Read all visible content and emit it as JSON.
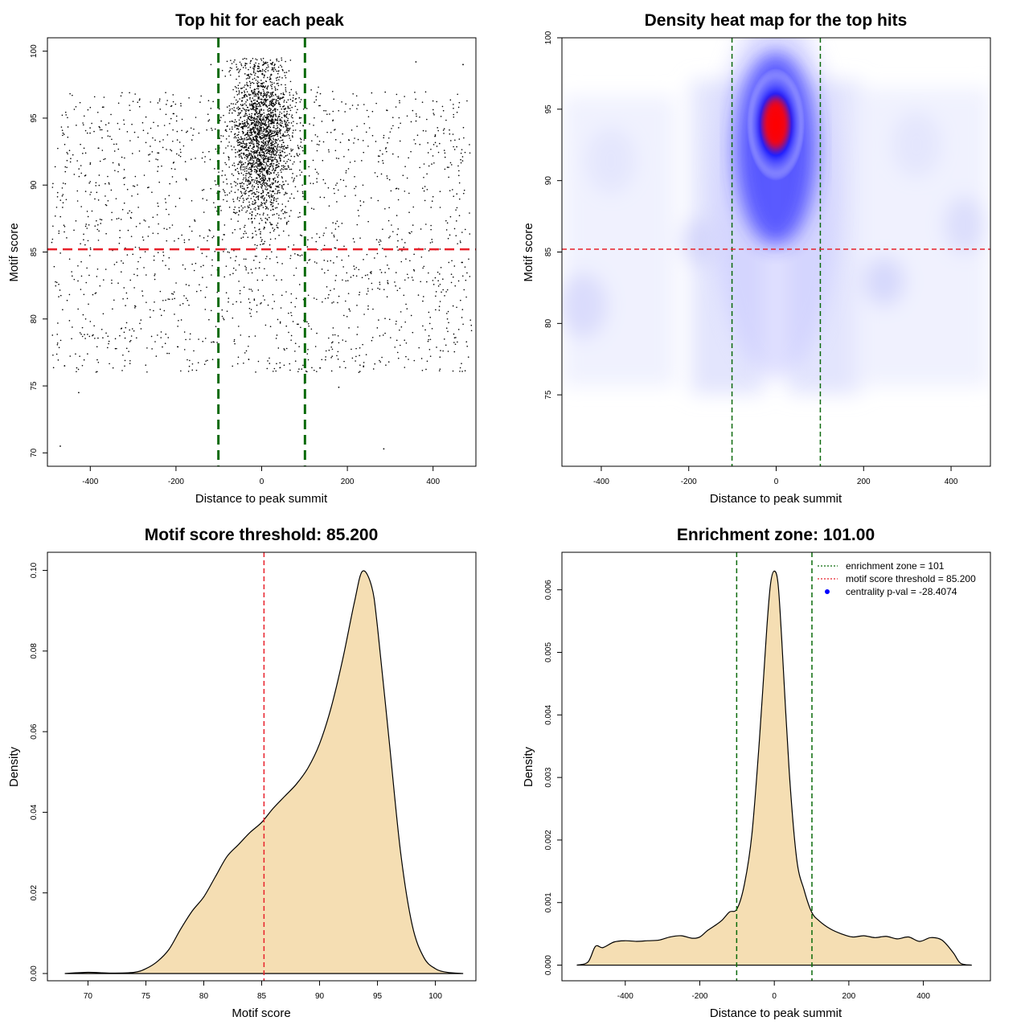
{
  "colors": {
    "threshold": "#e8202a",
    "zone": "#0a6a0a",
    "points": "#000000",
    "fill": "#f5deb3",
    "heat_low": "#ffffff",
    "heat_mid": "#0000ff",
    "heat_high": "#ff0000"
  },
  "chart_data": [
    {
      "id": "scatter",
      "type": "scatter",
      "title": "Top hit for each peak",
      "xlabel": "Distance to peak summit",
      "ylabel": "Motif score",
      "xlim": [
        -500,
        500
      ],
      "ylim": [
        69,
        101
      ],
      "xticks": [
        -400,
        -200,
        0,
        200,
        400
      ],
      "xtick_labels": [
        "-400",
        "-200",
        "0",
        "200",
        "400"
      ],
      "yticks": [
        70,
        75,
        80,
        85,
        90,
        95,
        100
      ],
      "ytick_labels": [
        "70",
        "75",
        "80",
        "85",
        "90",
        "95",
        "100"
      ],
      "hline": 85.2,
      "vlines": [
        -101,
        101
      ],
      "point_groups": [
        {
          "name": "background",
          "count": 1700,
          "x_range": [
            -490,
            490
          ],
          "y_range": [
            76,
            97
          ]
        },
        {
          "name": "central",
          "count": 2200,
          "x_center": 0,
          "x_sd": 35,
          "y_center": 93.5,
          "y_sd": 3
        },
        {
          "name": "outliers",
          "points": [
            [
              -470,
              70.5
            ],
            [
              285,
              70.3
            ],
            [
              -427,
              74.5
            ],
            [
              -460,
              76.5
            ],
            [
              100,
              75.2
            ],
            [
              180,
              74.9
            ],
            [
              360,
              99.2
            ],
            [
              470,
              99.0
            ]
          ]
        }
      ]
    },
    {
      "id": "heatmap",
      "type": "heatmap",
      "title": "Density heat map for the top hits",
      "xlabel": "Distance to peak summit",
      "ylabel": "Motif score",
      "xlim": [
        -490,
        490
      ],
      "ylim": [
        70,
        100
      ],
      "xticks": [
        -400,
        -200,
        0,
        200,
        400
      ],
      "xtick_labels": [
        "-400",
        "-200",
        "0",
        "200",
        "400"
      ],
      "yticks": [
        75,
        80,
        85,
        90,
        95,
        100
      ],
      "ytick_labels": [
        "75",
        "80",
        "85",
        "90",
        "95",
        "100"
      ],
      "hline": 85.2,
      "vlines": [
        -101,
        101
      ],
      "hotspot": {
        "x": 0,
        "y": 94
      },
      "color_scale": [
        "white",
        "blue",
        "red"
      ]
    },
    {
      "id": "score-density",
      "type": "area",
      "title": "Motif score threshold: 85.200",
      "xlabel": "Motif score",
      "ylabel": "Density",
      "xlim": [
        66.5,
        103.5
      ],
      "ylim": [
        -0.0018,
        0.1045
      ],
      "xticks": [
        70,
        75,
        80,
        85,
        90,
        95,
        100
      ],
      "xtick_labels": [
        "70",
        "75",
        "80",
        "85",
        "90",
        "95",
        "100"
      ],
      "yticks": [
        0.0,
        0.02,
        0.04,
        0.06,
        0.08,
        0.1
      ],
      "ytick_labels": [
        "0.00",
        "0.02",
        "0.04",
        "0.06",
        "0.08",
        "0.10"
      ],
      "vline": 85.2,
      "x": [
        68,
        70,
        72,
        74,
        75,
        76,
        77,
        78,
        79,
        80,
        81,
        82,
        83,
        84,
        85,
        86,
        87,
        88,
        89,
        90,
        91,
        92,
        93,
        93.7,
        94.5,
        95,
        96,
        97,
        98,
        99,
        100,
        101,
        102.4
      ],
      "y": [
        0.0,
        0.0003,
        0.0001,
        0.0003,
        0.0012,
        0.003,
        0.006,
        0.011,
        0.0155,
        0.019,
        0.024,
        0.029,
        0.032,
        0.035,
        0.0375,
        0.041,
        0.044,
        0.047,
        0.051,
        0.057,
        0.066,
        0.078,
        0.092,
        0.0998,
        0.096,
        0.086,
        0.058,
        0.03,
        0.012,
        0.004,
        0.0012,
        0.0003,
        0.0
      ]
    },
    {
      "id": "distance-density",
      "type": "area",
      "title": "Enrichment zone: 101.00",
      "xlabel": "Distance to peak summit",
      "ylabel": "Density",
      "xlim": [
        -570,
        580
      ],
      "ylim": [
        -0.00025,
        0.0066
      ],
      "xticks": [
        -400,
        -200,
        0,
        200,
        400
      ],
      "xtick_labels": [
        "-400",
        "-200",
        "0",
        "200",
        "400"
      ],
      "yticks": [
        0.0,
        0.001,
        0.002,
        0.003,
        0.004,
        0.005,
        0.006
      ],
      "ytick_labels": [
        "0.000",
        "0.001",
        "0.002",
        "0.003",
        "0.004",
        "0.005",
        "0.006"
      ],
      "vlines": [
        -101,
        101
      ],
      "x": [
        -530,
        -500,
        -480,
        -460,
        -430,
        -400,
        -370,
        -340,
        -310,
        -280,
        -250,
        -220,
        -200,
        -180,
        -160,
        -140,
        -120,
        -100,
        -80,
        -60,
        -40,
        -20,
        -10,
        0,
        10,
        20,
        40,
        60,
        80,
        100,
        120,
        150,
        180,
        210,
        240,
        270,
        300,
        330,
        360,
        390,
        420,
        450,
        480,
        500,
        530
      ],
      "y": [
        0.0,
        5e-05,
        0.0003,
        0.00028,
        0.00037,
        0.00039,
        0.00038,
        0.00039,
        0.0004,
        0.00045,
        0.00047,
        0.00043,
        0.00045,
        0.00055,
        0.00063,
        0.00072,
        0.00085,
        0.0009,
        0.0013,
        0.0021,
        0.0036,
        0.0054,
        0.0061,
        0.0063,
        0.0061,
        0.0052,
        0.0031,
        0.0017,
        0.0012,
        0.00085,
        0.00071,
        0.00058,
        0.0005,
        0.00045,
        0.00047,
        0.00044,
        0.00046,
        0.00042,
        0.00045,
        0.00038,
        0.00044,
        0.0004,
        0.0002,
        3e-05,
        0.0
      ],
      "legend": [
        {
          "label": "enrichment zone = 101",
          "style": "dotted-line",
          "color": "#0a6a0a"
        },
        {
          "label": "motif score threshold = 85.200",
          "style": "dotted-line",
          "color": "#e8202a"
        },
        {
          "label": "centrality p-val = -28.4074",
          "style": "point",
          "color": "#0000ff"
        }
      ],
      "legend_position": "top-right"
    }
  ]
}
